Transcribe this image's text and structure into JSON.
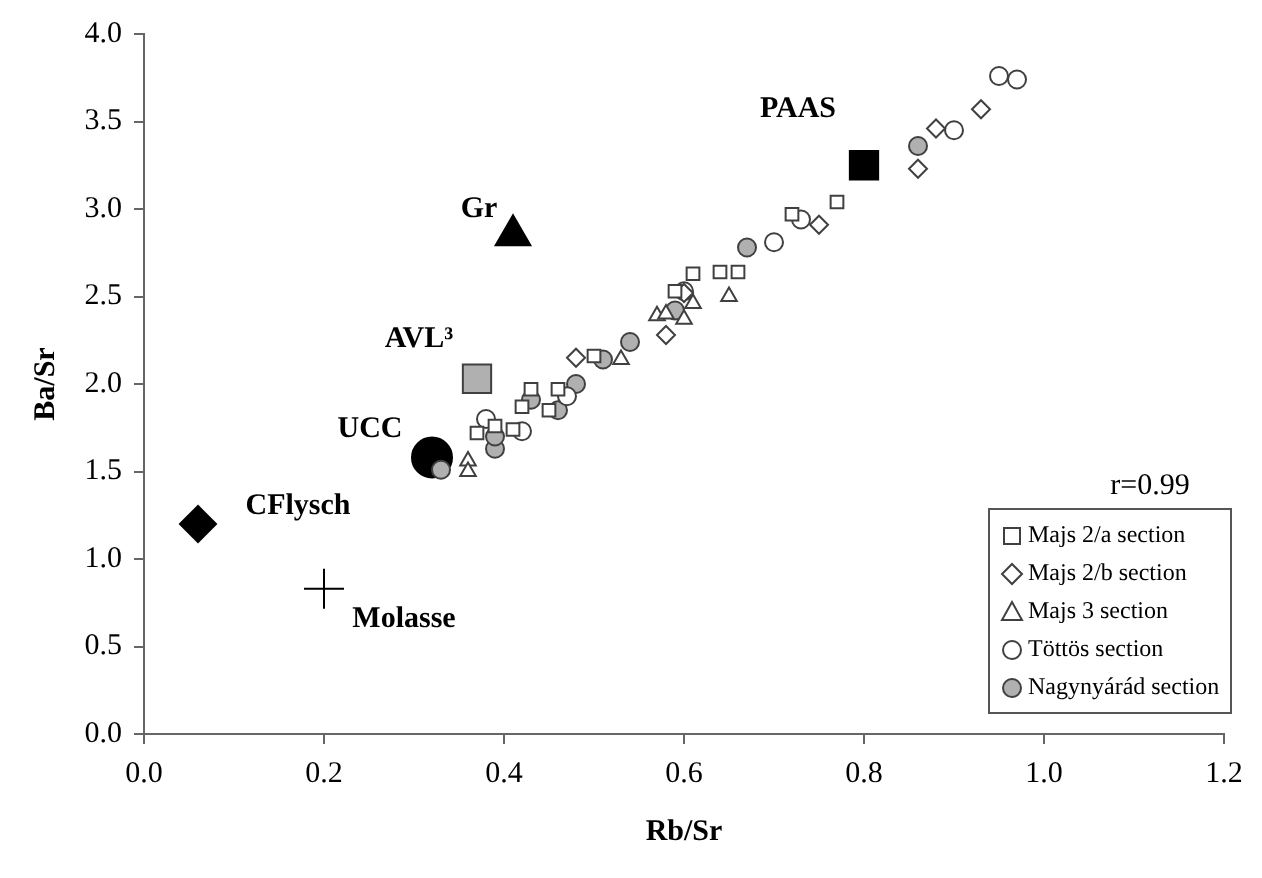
{
  "chart_data": {
    "type": "scatter",
    "xlabel": "Rb/Sr",
    "ylabel": "Ba/Sr",
    "xlim": [
      0,
      1.2
    ],
    "xticks": [
      {
        "value": 0,
        "label": "0.0"
      },
      {
        "value": 0.2,
        "label": "0.2"
      },
      {
        "value": 0.4,
        "label": "0.4"
      },
      {
        "value": 0.6,
        "label": "0.6"
      },
      {
        "value": 0.8,
        "label": "0.8"
      },
      {
        "value": 1,
        "label": "1.0"
      },
      {
        "value": 1.2,
        "label": "1.2"
      }
    ],
    "ylim": [
      0,
      4
    ],
    "yticks": [
      {
        "value": 0,
        "label": "0.0"
      },
      {
        "value": 0.5,
        "label": "0.5"
      },
      {
        "value": 1,
        "label": "1.0"
      },
      {
        "value": 1.5,
        "label": "1.5"
      },
      {
        "value": 2,
        "label": "2.0"
      },
      {
        "value": 2.5,
        "label": "2.5"
      },
      {
        "value": 3,
        "label": "3.0"
      },
      {
        "value": 3.5,
        "label": "3.5"
      },
      {
        "value": 4,
        "label": "4.0"
      }
    ],
    "grid": false,
    "legend": "bottom right",
    "annotations": [
      "r=0.99"
    ],
    "series": [
      {
        "name": "Majs 2/a section",
        "color": "#ffffff",
        "marker": "square",
        "x": [
          0.72,
          0.61,
          0.64,
          0.66,
          0.59,
          0.5,
          0.43,
          0.42,
          0.46,
          0.45,
          0.37,
          0.39,
          0.41,
          0.77
        ],
        "values": [
          2.97,
          2.63,
          2.64,
          2.64,
          2.53,
          2.16,
          1.97,
          1.87,
          1.97,
          1.85,
          1.72,
          1.76,
          1.74,
          3.04
        ]
      },
      {
        "name": "Majs 2/b section",
        "color": "#ffffff",
        "marker": "diamond",
        "x": [
          0.48,
          0.58,
          0.75,
          0.88,
          0.86,
          0.93,
          0.6
        ],
        "values": [
          2.15,
          2.28,
          2.91,
          3.46,
          3.23,
          3.57,
          2.52
        ]
      },
      {
        "name": "Majs 3 section",
        "color": "#ffffff",
        "marker": "triangle",
        "x": [
          0.57,
          0.58,
          0.61,
          0.6,
          0.65,
          0.53,
          0.36,
          0.36
        ],
        "values": [
          2.39,
          2.4,
          2.46,
          2.37,
          2.5,
          2.14,
          1.56,
          1.5
        ]
      },
      {
        "name": "Töttös section",
        "color": "#ffffff",
        "marker": "circle",
        "x": [
          0.95,
          0.97,
          0.9,
          0.73,
          0.7,
          0.38,
          0.42,
          0.47,
          0.6
        ],
        "values": [
          3.76,
          3.74,
          3.45,
          2.94,
          2.81,
          1.8,
          1.73,
          1.93,
          2.53
        ]
      },
      {
        "name": "Nagynyárád section",
        "color": "#b0b0b0",
        "marker": "circle",
        "x": [
          0.86,
          0.67,
          0.54,
          0.51,
          0.48,
          0.46,
          0.43,
          0.39,
          0.39,
          0.33,
          0.59
        ],
        "values": [
          3.36,
          2.78,
          2.24,
          2.14,
          2.0,
          1.85,
          1.91,
          1.63,
          1.7,
          1.51,
          2.42
        ]
      },
      {
        "name": "PAAS",
        "color": "#000000",
        "marker": "square",
        "x": [
          0.8
        ],
        "values": [
          3.25
        ]
      },
      {
        "name": "Gr",
        "color": "#000000",
        "marker": "triangle",
        "x": [
          0.41
        ],
        "values": [
          2.85
        ]
      },
      {
        "name": "AVL³",
        "color": "#b0b0b0",
        "marker": "square",
        "x": [
          0.37
        ],
        "values": [
          2.03
        ]
      },
      {
        "name": "UCC",
        "color": "#000000",
        "marker": "circle",
        "x": [
          0.32
        ],
        "values": [
          1.58
        ]
      },
      {
        "name": "CFlysch",
        "color": "#000000",
        "marker": "diamond",
        "x": [
          0.06
        ],
        "values": [
          1.2
        ]
      },
      {
        "name": "Molasse",
        "color": "#000000",
        "marker": "cross",
        "x": [
          0.2
        ],
        "values": [
          0.83
        ]
      }
    ]
  }
}
